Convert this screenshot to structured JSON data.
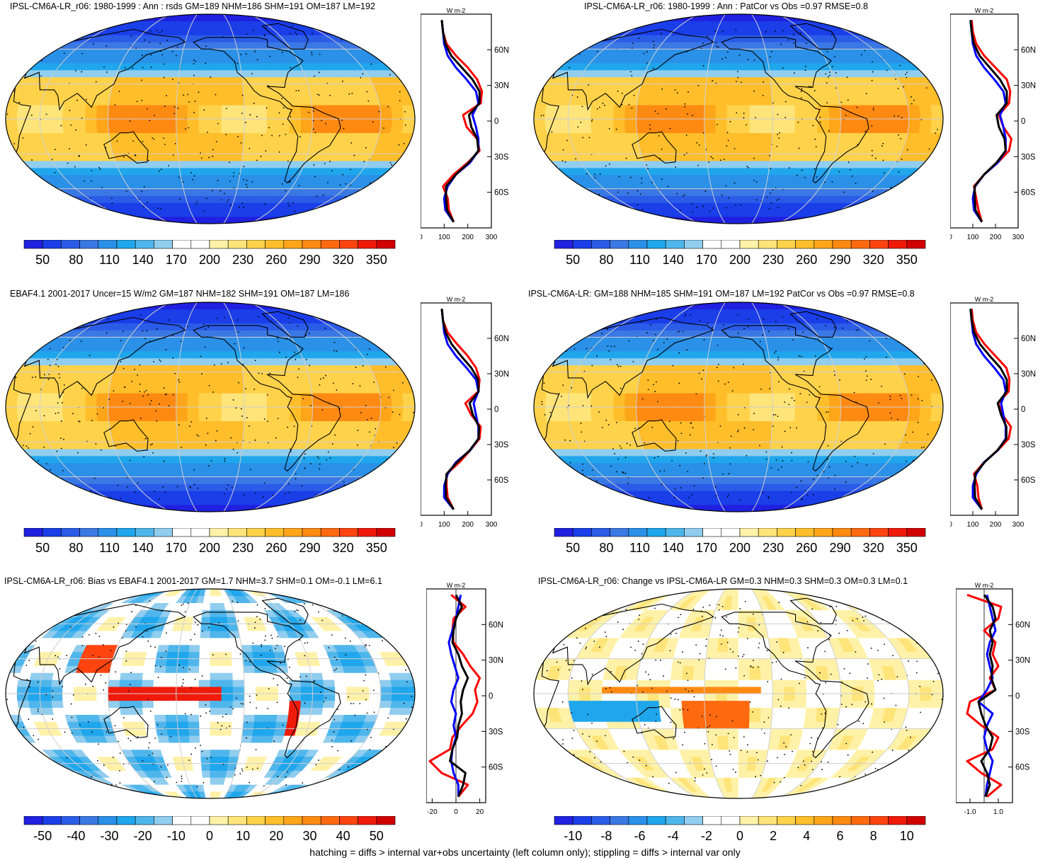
{
  "caption": "hatching = diffs > internal var+obs uncertainty (left column only); stippling = diffs > internal var only",
  "profile_unit": "W m-2",
  "colors": {
    "mean_scale": [
      "#2020e0",
      "#1a3ee8",
      "#2a5ce8",
      "#3a78e4",
      "#2a90e8",
      "#1fa6ec",
      "#4fb6ec",
      "#90cdee",
      "#ffffff",
      "#ffffff",
      "#fff2a8",
      "#ffe47a",
      "#ffd24a",
      "#ffbe2a",
      "#ffa51a",
      "#ff8a12",
      "#ff6a10",
      "#ff4410",
      "#f01a0a",
      "#d00000"
    ],
    "diff_scale": [
      "#2020e0",
      "#1a3ee8",
      "#2a5ce8",
      "#3a78e4",
      "#2a90e8",
      "#1fa6ec",
      "#4fb6ec",
      "#90cdee",
      "#ffffff",
      "#ffffff",
      "#fff2a8",
      "#ffe47a",
      "#ffd24a",
      "#ffbe2a",
      "#ffa51a",
      "#ff8a12",
      "#ff6a10",
      "#ff4410",
      "#f01a0a",
      "#d00000"
    ],
    "profile_series": [
      "#ff0000",
      "#0000ff",
      "#000000"
    ]
  },
  "chart_data": [
    {
      "type": "heatmap",
      "title": "IPSL-CM6A-LR_r06: 1980-1999 : Ann : rsds GM=189 NHM=186 SHM=191 OM=187 LM=192",
      "colorbar": {
        "ticks": [
          "50",
          "80",
          "110",
          "140",
          "170",
          "200",
          "230",
          "260",
          "290",
          "320",
          "350"
        ]
      },
      "profile": {
        "type": "line",
        "xlim": [
          0,
          300
        ],
        "ylim": [
          -90,
          90
        ],
        "xticks": [
          "0",
          "100",
          "200",
          "300"
        ],
        "yticks": [
          "60N",
          "30N",
          "0",
          "30S",
          "60S"
        ],
        "lat": [
          -85,
          -75,
          -65,
          -55,
          -45,
          -35,
          -25,
          -15,
          -5,
          5,
          15,
          25,
          35,
          45,
          55,
          65,
          75,
          85
        ],
        "series": [
          {
            "color": "#ff0000",
            "values": [
              140,
              120,
              115,
              95,
              140,
              200,
              250,
              240,
              195,
              180,
              255,
              260,
              240,
              200,
              150,
              110,
              95,
              90
            ]
          },
          {
            "color": "#0000ff",
            "values": [
              140,
              105,
              100,
              115,
              150,
              210,
              245,
              245,
              235,
              220,
              245,
              235,
              195,
              150,
              115,
              100,
              95,
              90
            ]
          },
          {
            "color": "#000000",
            "values": [
              140,
              112,
              108,
              108,
              150,
              205,
              245,
              240,
              215,
              205,
              250,
              250,
              220,
              175,
              130,
              105,
              95,
              90
            ]
          }
        ]
      }
    },
    {
      "type": "heatmap",
      "title": "IPSL-CM6A-LR_r06: 1980-1999 : Ann : PatCor vs Obs =0.97 RMSE=0.8",
      "colorbar": {
        "ticks": [
          "50",
          "80",
          "110",
          "140",
          "170",
          "200",
          "230",
          "260",
          "290",
          "320",
          "350"
        ]
      },
      "profile": {
        "type": "line",
        "xlim": [
          0,
          300
        ],
        "ylim": [
          -90,
          90
        ],
        "xticks": [
          "0",
          "100",
          "200",
          "300"
        ],
        "yticks": [
          "60N",
          "30N",
          "0",
          "30S",
          "60S"
        ],
        "lat": [
          -85,
          -75,
          -65,
          -55,
          -45,
          -35,
          -25,
          -15,
          -5,
          5,
          15,
          25,
          35,
          45,
          55,
          65,
          75,
          85
        ],
        "series": [
          {
            "color": "#ff0000",
            "values": [
              140,
              125,
              115,
              105,
              150,
              210,
              260,
              270,
              235,
              215,
              260,
              265,
              250,
              200,
              150,
              115,
              100,
              95
            ]
          },
          {
            "color": "#0000ff",
            "values": [
              140,
              105,
              100,
              110,
              150,
              210,
              245,
              245,
              235,
              220,
              245,
              235,
              195,
              150,
              115,
              100,
              95,
              90
            ]
          },
          {
            "color": "#000000",
            "values": [
              140,
              112,
              108,
              108,
              150,
              205,
              245,
              240,
              215,
              205,
              250,
              250,
              220,
              175,
              130,
              105,
              95,
              90
            ]
          }
        ]
      }
    },
    {
      "type": "heatmap",
      "title": "EBAF4.1 2001-2017 Uncer=15 W/m2 GM=187 NHM=182 SHM=191 OM=187 LM=186",
      "colorbar": {
        "ticks": [
          "50",
          "80",
          "110",
          "140",
          "170",
          "200",
          "230",
          "260",
          "290",
          "320",
          "350"
        ]
      },
      "profile": {
        "type": "line",
        "xlim": [
          0,
          300
        ],
        "ylim": [
          -90,
          90
        ],
        "xticks": [
          "0",
          "100",
          "200",
          "300"
        ],
        "yticks": [
          "60N",
          "30N",
          "0",
          "30S",
          "60S"
        ],
        "lat": [
          -85,
          -75,
          -65,
          -55,
          -45,
          -35,
          -25,
          -15,
          -5,
          5,
          15,
          25,
          35,
          45,
          55,
          65,
          75,
          85
        ],
        "series": [
          {
            "color": "#ff0000",
            "values": [
              140,
              115,
              110,
              110,
              165,
              210,
              250,
              255,
              215,
              190,
              245,
              250,
              235,
              200,
              155,
              115,
              95,
              90
            ]
          },
          {
            "color": "#0000ff",
            "values": [
              140,
              100,
              100,
              115,
              150,
              210,
              245,
              245,
              235,
              225,
              245,
              235,
              195,
              150,
              115,
              100,
              95,
              90
            ]
          },
          {
            "color": "#000000",
            "values": [
              140,
              108,
              106,
              110,
              155,
              208,
              246,
              248,
              222,
              208,
              246,
              244,
              215,
              172,
              132,
              106,
              95,
              90
            ]
          }
        ]
      }
    },
    {
      "type": "heatmap",
      "title": "IPSL-CM6A-LR: GM=188 NHM=185 SHM=191 OM=187 LM=192 PatCor vs Obs =0.97 RMSE=0.8",
      "colorbar": {
        "ticks": [
          "50",
          "80",
          "110",
          "140",
          "170",
          "200",
          "230",
          "260",
          "290",
          "320",
          "350"
        ]
      },
      "profile": {
        "type": "line",
        "xlim": [
          0,
          300
        ],
        "ylim": [
          -90,
          90
        ],
        "xticks": [
          "0",
          "100",
          "200",
          "300"
        ],
        "yticks": [
          "60N",
          "30N",
          "0",
          "30S",
          "60S"
        ],
        "lat": [
          -85,
          -75,
          -65,
          -55,
          -45,
          -35,
          -25,
          -15,
          -5,
          5,
          15,
          25,
          35,
          45,
          55,
          65,
          75,
          85
        ],
        "series": [
          {
            "color": "#ff0000",
            "values": [
              140,
              125,
              120,
              105,
              150,
              210,
              258,
              268,
              232,
              212,
              258,
              262,
              248,
              200,
              152,
              115,
              100,
              95
            ]
          },
          {
            "color": "#0000ff",
            "values": [
              140,
              100,
              100,
              115,
              150,
              210,
              245,
              245,
              235,
              225,
              245,
              235,
              195,
              150,
              115,
              100,
              95,
              90
            ]
          },
          {
            "color": "#000000",
            "values": [
              140,
              110,
              108,
              110,
              152,
              208,
              248,
              248,
              225,
              210,
              250,
              250,
              222,
              175,
              132,
              106,
              95,
              90
            ]
          }
        ]
      }
    },
    {
      "type": "heatmap",
      "title": "IPSL-CM6A-LR_r06: Bias vs EBAF4.1 2001-2017 GM=1.7 NHM=3.7 SHM=0.1 OM=-0.1 LM=6.1",
      "colorbar": {
        "ticks": [
          "-50",
          "-40",
          "-30",
          "-20",
          "-10",
          "0",
          "10",
          "20",
          "30",
          "40",
          "50"
        ]
      },
      "profile": {
        "type": "line",
        "xlim": [
          -25,
          25
        ],
        "ylim": [
          -90,
          90
        ],
        "xticks": [
          "-20",
          "0",
          "20"
        ],
        "yticks": [
          "60N",
          "30N",
          "0",
          "30S",
          "60S"
        ],
        "lat": [
          -85,
          -75,
          -65,
          -55,
          -45,
          -35,
          -25,
          -15,
          -5,
          5,
          15,
          25,
          35,
          45,
          55,
          65,
          75,
          85
        ],
        "series": [
          {
            "color": "#ff0000",
            "values": [
              2,
              10,
              -12,
              -22,
              -5,
              -3,
              5,
              14,
              18,
              16,
              20,
              12,
              6,
              -2,
              -3,
              -2,
              8,
              -4
            ]
          },
          {
            "color": "#0000ff",
            "values": [
              2,
              2,
              -2,
              -4,
              -3,
              0,
              -2,
              0,
              -4,
              -2,
              2,
              -1,
              -4,
              -6,
              -3,
              0,
              2,
              4
            ]
          },
          {
            "color": "#000000",
            "values": [
              2,
              6,
              8,
              -5,
              -3,
              1,
              2,
              5,
              4,
              6,
              10,
              5,
              2,
              -3,
              -2,
              0,
              5,
              0
            ]
          }
        ]
      }
    },
    {
      "type": "heatmap",
      "title": "IPSL-CM6A-LR_r06: Change vs IPSL-CM6A-LR GM=0.3 NHM=0.3 SHM=0.3 OM=0.3 LM=0.1",
      "colorbar": {
        "ticks": [
          "-10",
          "-8",
          "-6",
          "-4",
          "-2",
          "0",
          "2",
          "4",
          "6",
          "8",
          "10"
        ]
      },
      "profile": {
        "type": "line",
        "xlim": [
          -2,
          2
        ],
        "ylim": [
          -90,
          90
        ],
        "xticks": [
          "-1.0",
          "1.0"
        ],
        "yticks": [
          "60N",
          "30N",
          "0",
          "30S",
          "60S"
        ],
        "lat": [
          -85,
          -75,
          -65,
          -55,
          -45,
          -35,
          -25,
          -15,
          -5,
          5,
          15,
          25,
          35,
          45,
          55,
          65,
          75,
          85
        ],
        "series": [
          {
            "color": "#ff0000",
            "values": [
              0.2,
              1.2,
              -0.2,
              -1.2,
              0.6,
              1.0,
              -0.2,
              -1.2,
              -1.0,
              0.8,
              0.4,
              1.0,
              0.6,
              0.8,
              0.0,
              1.0,
              1.2,
              -1.2
            ]
          },
          {
            "color": "#0000ff",
            "values": [
              0.1,
              0.2,
              0.4,
              0.6,
              0.2,
              0.0,
              0.2,
              0.6,
              -0.4,
              0.2,
              0.6,
              0.4,
              0.2,
              0.4,
              0.8,
              0.6,
              0.4,
              0.2
            ]
          },
          {
            "color": "#000000",
            "values": [
              0.1,
              0.4,
              0.2,
              -0.2,
              0.4,
              0.6,
              0.1,
              -0.2,
              -0.4,
              0.8,
              0.5,
              0.6,
              0.4,
              0.6,
              0.4,
              0.8,
              0.6,
              0.0
            ]
          }
        ]
      }
    }
  ]
}
